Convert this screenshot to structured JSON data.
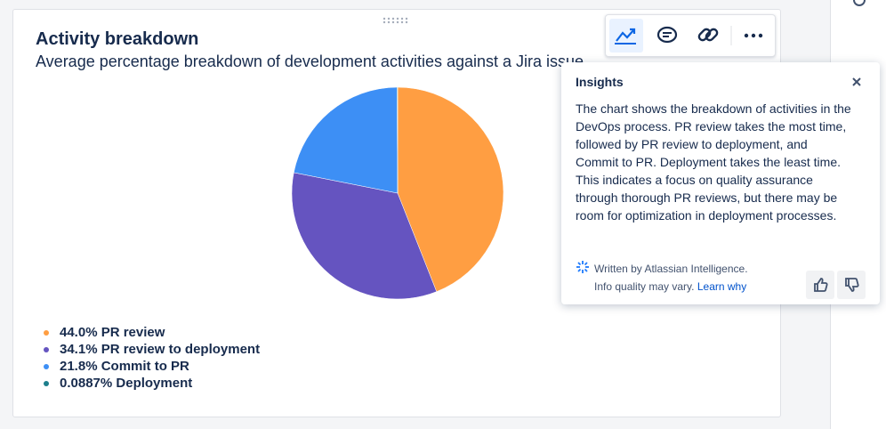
{
  "chart_data": {
    "type": "pie",
    "title": "Activity breakdown",
    "subtitle": "Average percentage breakdown of development activities against a Jira issue",
    "categories": [
      "PR review",
      "PR review to deployment",
      "Commit to PR",
      "Deployment"
    ],
    "values": [
      44.0,
      34.1,
      21.8,
      0.0887
    ],
    "value_labels": [
      "44.0%",
      "34.1%",
      "21.8%",
      "0.0887%"
    ],
    "colors": [
      "#ff9e42",
      "#6554c0",
      "#3d8ff5",
      "#1d7f8c"
    ]
  },
  "insights": {
    "title": "Insights",
    "body": "The chart shows the breakdown of activities in the DevOps process. PR review takes the most time, followed by PR review to deployment, and Commit to PR. Deployment takes the least time. This indicates a focus on quality assurance through thorough PR reviews, but there may be room for optimization in deployment processes.",
    "footer": "Written by Atlassian Intelligence.",
    "note": "Info quality may vary.",
    "link": "Learn why"
  }
}
